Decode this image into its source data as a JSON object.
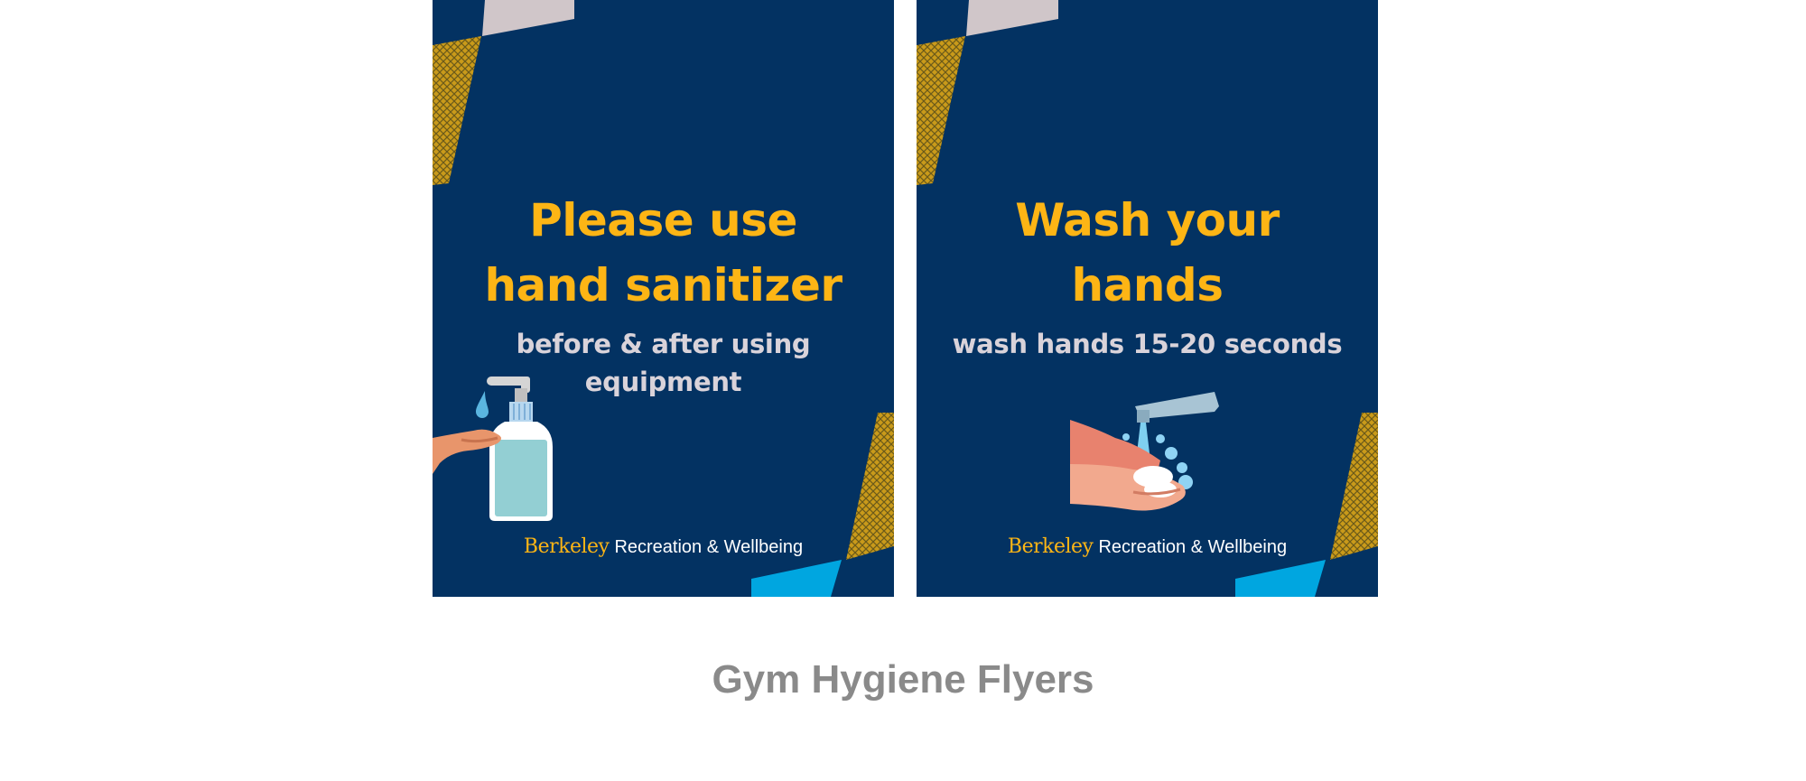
{
  "caption": "Gym Hygiene Flyers",
  "flyers": [
    {
      "headline": [
        "Please use",
        "hand sanitizer"
      ],
      "subtext": [
        "before & after using",
        "equipment"
      ],
      "logo": {
        "berkeley": "Berkeley",
        "rec": "Recreation & Wellbeing"
      },
      "illustration": "hand-sanitizer-pump-icon"
    },
    {
      "headline": [
        "Wash your",
        "hands"
      ],
      "subtext": [
        "wash hands 15-20 seconds"
      ],
      "logo": {
        "berkeley": "Berkeley",
        "rec": "Recreation & Wellbeing"
      },
      "illustration": "washing-hands-faucet-icon"
    }
  ],
  "colors": {
    "navy": "#033262",
    "gold": "#fdb515",
    "light_gray": "#d9d3da",
    "sky_blue": "#00a6e0",
    "caption_gray": "#8a8a8a"
  }
}
